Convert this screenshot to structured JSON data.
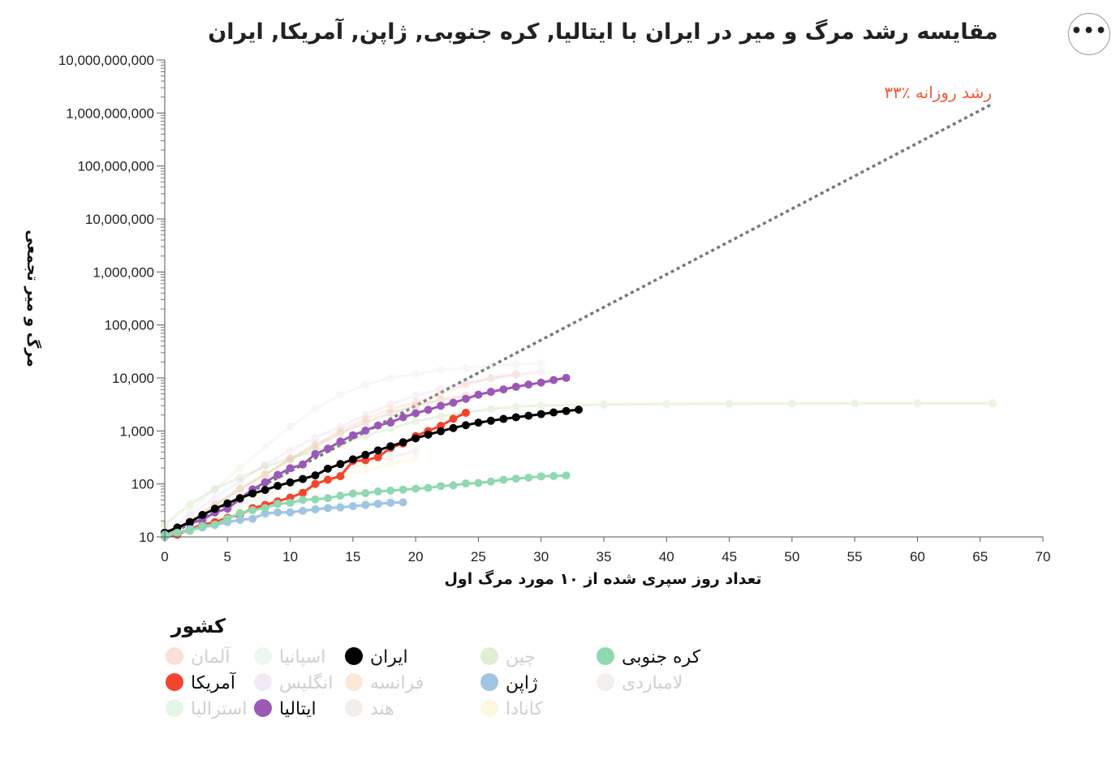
{
  "menu": {
    "icon": "more-horizontal-icon",
    "glyph": "•••"
  },
  "chart_data": {
    "type": "line",
    "title": "مقایسه رشد مرگ و میر در ایران با ایتالیا, کره جنوبی, ژاپن, آمریکا, ایران",
    "xlabel": "تعداد روز سپری شده از ۱۰ مورد مرگ اول",
    "ylabel": "مرگ و میر تجمعی",
    "xlim": [
      0,
      70
    ],
    "ylim": [
      10,
      10000000000
    ],
    "yscale": "log",
    "xticks": [
      0,
      5,
      10,
      15,
      20,
      25,
      30,
      35,
      40,
      45,
      50,
      55,
      60,
      65,
      70
    ],
    "yticks": [
      10,
      100,
      1000,
      10000,
      100000,
      1000000,
      10000000,
      100000000,
      1000000000,
      10000000000
    ],
    "ytick_labels": [
      "10",
      "100",
      "1,000",
      "10,000",
      "100,000",
      "1,000,000",
      "10,000,000",
      "100,000,000",
      "1,000,000,000",
      "10,000,000,000"
    ],
    "grid": false,
    "annotation": {
      "text": "۳۳٪ رشد روزانه",
      "growth_rate": 0.33,
      "x_range": [
        0,
        66
      ],
      "start_y": 10,
      "color": "#f15a3b"
    },
    "legend": {
      "title": "کشور",
      "placement": "bottom-right"
    },
    "series": [
      {
        "name": "آلمان",
        "color": "#f3a98b",
        "highlighted": false,
        "x": [
          0,
          2,
          4,
          6,
          8,
          10,
          12,
          14,
          16,
          18,
          20,
          22,
          24,
          26
        ],
        "y": [
          10,
          20,
          40,
          80,
          150,
          280,
          500,
          900,
          1500,
          2200,
          3000,
          3900,
          4600,
          5200
        ]
      },
      {
        "name": "آمریکا",
        "color": "#f4442e",
        "highlighted": true,
        "x": [
          0,
          1,
          2,
          3,
          4,
          5,
          6,
          7,
          8,
          9,
          10,
          11,
          12,
          13,
          14,
          15,
          16,
          17,
          18,
          19,
          20,
          21,
          22,
          23,
          24
        ],
        "y": [
          10,
          11,
          14,
          17,
          19,
          23,
          26,
          35,
          40,
          47,
          55,
          68,
          100,
          120,
          140,
          270,
          280,
          320,
          480,
          580,
          800,
          1000,
          1250,
          1700,
          2200
        ]
      },
      {
        "name": "استرالیا",
        "color": "#b4e3c6",
        "highlighted": false,
        "x": [
          0,
          2,
          4,
          6,
          8,
          10,
          12,
          14,
          16,
          18
        ],
        "y": [
          10,
          13,
          16,
          20,
          25,
          30,
          35,
          40,
          45,
          50
        ]
      },
      {
        "name": "اسپانیا",
        "color": "#cfe8d5",
        "highlighted": false,
        "x": [
          0,
          2,
          4,
          6,
          8,
          10,
          12,
          14,
          16,
          18,
          20,
          22,
          24,
          26,
          28,
          30
        ],
        "y": [
          10,
          30,
          80,
          200,
          500,
          1200,
          2600,
          4800,
          7500,
          10000,
          12000,
          14000,
          15500,
          17000,
          18000,
          19000
        ]
      },
      {
        "name": "انگلیس",
        "color": "#dcc3e8",
        "highlighted": false,
        "x": [
          0,
          2,
          4,
          6,
          8,
          10,
          12,
          14,
          16,
          18,
          20,
          22,
          24,
          26,
          28,
          30
        ],
        "y": [
          10,
          25,
          55,
          110,
          230,
          430,
          750,
          1200,
          2000,
          3200,
          4600,
          6200,
          8000,
          9800,
          11500,
          13000
        ]
      },
      {
        "name": "ایتالیا",
        "color": "#9b59b6",
        "highlighted": true,
        "x": [
          0,
          1,
          2,
          3,
          4,
          5,
          6,
          7,
          8,
          9,
          10,
          11,
          12,
          13,
          14,
          15,
          16,
          17,
          18,
          19,
          20,
          21,
          22,
          23,
          24,
          25,
          26,
          27,
          28,
          29,
          30,
          31,
          32
        ],
        "y": [
          12,
          15,
          18,
          21,
          29,
          34,
          52,
          79,
          107,
          148,
          197,
          233,
          366,
          463,
          631,
          827,
          1016,
          1266,
          1441,
          1809,
          2158,
          2503,
          2978,
          3405,
          4032,
          4825,
          5476,
          6077,
          6820,
          7503,
          8165,
          9134,
          10023
        ]
      },
      {
        "name": "ایران",
        "color": "#000000",
        "highlighted": true,
        "x": [
          0,
          1,
          2,
          3,
          4,
          5,
          6,
          7,
          8,
          9,
          10,
          11,
          12,
          13,
          14,
          15,
          16,
          17,
          18,
          19,
          20,
          21,
          22,
          23,
          24,
          25,
          26,
          27,
          28,
          29,
          30,
          31,
          32,
          33
        ],
        "y": [
          12,
          15,
          19,
          26,
          34,
          43,
          54,
          66,
          77,
          92,
          107,
          124,
          145,
          194,
          237,
          291,
          354,
          429,
          514,
          611,
          724,
          853,
          988,
          1135,
          1284,
          1433,
          1556,
          1685,
          1812,
          1934,
          2077,
          2234,
          2378,
          2517
        ]
      },
      {
        "name": "فرانسه",
        "color": "#f5c08f",
        "highlighted": false,
        "x": [
          0,
          2,
          4,
          6,
          8,
          10,
          12,
          14,
          16,
          18,
          20,
          22,
          24,
          26,
          28
        ],
        "y": [
          10,
          20,
          40,
          80,
          150,
          300,
          560,
          1000,
          1700,
          2600,
          3500,
          5000,
          7500,
          10000,
          12000
        ]
      },
      {
        "name": "هند",
        "color": "#d8d0c8",
        "highlighted": false,
        "x": [
          0,
          2,
          4,
          6,
          8,
          10,
          12,
          14,
          16,
          18,
          20
        ],
        "y": [
          10,
          15,
          25,
          40,
          60,
          90,
          130,
          180,
          240,
          320,
          420
        ]
      },
      {
        "name": "چین",
        "color": "#a8cf80",
        "highlighted": false,
        "x": [
          0,
          2,
          4,
          6,
          8,
          10,
          12,
          14,
          16,
          18,
          20,
          22,
          24,
          26,
          28,
          30,
          35,
          40,
          45,
          50,
          55,
          60,
          66
        ],
        "y": [
          17,
          41,
          80,
          132,
          213,
          304,
          427,
          563,
          813,
          1113,
          1523,
          1868,
          2236,
          2594,
          2870,
          3012,
          3136,
          3231,
          3277,
          3300,
          3316,
          3326,
          3335
        ]
      },
      {
        "name": "ژاپن",
        "color": "#9fc5e3",
        "highlighted": true,
        "x": [
          0,
          1,
          2,
          3,
          4,
          5,
          6,
          7,
          8,
          9,
          10,
          11,
          12,
          13,
          14,
          15,
          16,
          17,
          18,
          19
        ],
        "y": [
          10,
          12,
          14,
          15,
          17,
          19,
          21,
          22,
          28,
          29,
          29,
          31,
          33,
          35,
          36,
          38,
          40,
          42,
          44,
          45
        ]
      },
      {
        "name": "کانادا",
        "color": "#f9edb0",
        "highlighted": false,
        "x": [
          0,
          2,
          4,
          6,
          8,
          10,
          12,
          14,
          16,
          18,
          20
        ],
        "y": [
          10,
          14,
          20,
          30,
          45,
          60,
          90,
          130,
          180,
          240,
          310
        ]
      },
      {
        "name": "کره جنوبی",
        "color": "#8fd8b0",
        "highlighted": true,
        "x": [
          0,
          1,
          2,
          3,
          4,
          5,
          6,
          7,
          8,
          9,
          10,
          11,
          12,
          13,
          14,
          15,
          16,
          17,
          18,
          19,
          20,
          21,
          22,
          23,
          24,
          25,
          26,
          27,
          28,
          29,
          30,
          31,
          32
        ],
        "y": [
          11,
          12,
          13,
          16,
          17,
          22,
          28,
          32,
          35,
          42,
          44,
          50,
          51,
          54,
          60,
          66,
          67,
          72,
          75,
          78,
          81,
          84,
          91,
          94,
          102,
          104,
          111,
          120,
          126,
          131,
          139,
          141,
          144
        ]
      },
      {
        "name": "لامباردی",
        "color": "#d9d2cc",
        "highlighted": false,
        "x": [
          0,
          2,
          4,
          6,
          8,
          10,
          12,
          14,
          16,
          18,
          20,
          22,
          24
        ],
        "y": [
          10,
          20,
          40,
          80,
          150,
          300,
          550,
          900,
          1400,
          2100,
          2900,
          3800,
          4700
        ]
      }
    ]
  }
}
